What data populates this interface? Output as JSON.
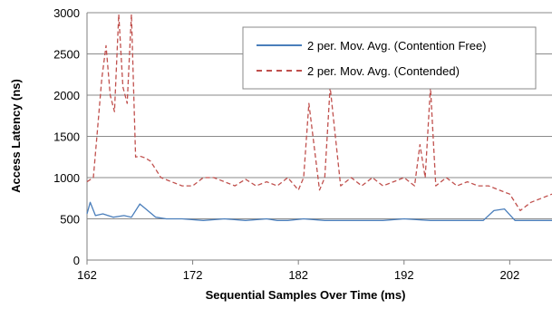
{
  "chart_data": {
    "type": "line",
    "title": "",
    "xlabel": "Sequential Samples Over Time (ms)",
    "ylabel": "Access Latency (ns)",
    "xlim": [
      162,
      206
    ],
    "ylim": [
      0,
      3000
    ],
    "x_ticks": [
      162,
      172,
      182,
      192,
      202
    ],
    "y_ticks": [
      0,
      500,
      1000,
      1500,
      2000,
      2500,
      3000
    ],
    "grid": "horizontal",
    "legend_position": "top-right",
    "series": [
      {
        "name": "2 per. Mov. Avg. (Contention Free)",
        "color": "#4a7ebb",
        "dash": "solid",
        "x": [
          162,
          162.3,
          162.8,
          163.5,
          164.5,
          165.5,
          166.2,
          167.0,
          168.5,
          169.5,
          171.0,
          173.0,
          175.0,
          177.0,
          179.0,
          180.0,
          181.0,
          182.5,
          184.5,
          186.0,
          188.0,
          190.0,
          192.0,
          194.5,
          196.0,
          198.0,
          199.5,
          200.5,
          201.5,
          202.5,
          204.0,
          206.0
        ],
        "y": [
          560,
          700,
          540,
          560,
          520,
          540,
          520,
          680,
          520,
          500,
          500,
          480,
          500,
          480,
          500,
          480,
          480,
          500,
          480,
          480,
          480,
          480,
          500,
          480,
          480,
          480,
          480,
          600,
          620,
          480,
          480,
          480
        ]
      },
      {
        "name": "2 per. Mov. Avg. (Contended)",
        "color": "#c0504d",
        "dash": "dashed",
        "x": [
          162,
          162.6,
          163.0,
          163.4,
          163.8,
          164.2,
          164.6,
          165.0,
          165.4,
          165.8,
          166.2,
          166.6,
          167.0,
          167.5,
          168.0,
          169.0,
          170.0,
          171.0,
          172.0,
          173.0,
          174.0,
          175.0,
          176.0,
          177.0,
          178.0,
          179.0,
          180.0,
          181.0,
          182.0,
          182.5,
          183.0,
          184.0,
          184.5,
          185.0,
          186.0,
          187.0,
          188.0,
          189.0,
          190.0,
          191.0,
          192.0,
          193.0,
          193.5,
          194.0,
          194.5,
          195.0,
          196.0,
          197.0,
          198.0,
          199.0,
          200.0,
          201.0,
          202.0,
          203.0,
          204.0,
          205.0,
          206.0
        ],
        "y": [
          950,
          1000,
          1600,
          2200,
          2600,
          2000,
          1800,
          2980,
          2100,
          1900,
          2980,
          1250,
          1260,
          1240,
          1200,
          1000,
          950,
          900,
          900,
          1000,
          1000,
          950,
          900,
          980,
          900,
          950,
          900,
          1000,
          850,
          1000,
          1900,
          850,
          1000,
          2100,
          900,
          1000,
          900,
          1000,
          900,
          950,
          1000,
          900,
          1400,
          1000,
          2100,
          900,
          1000,
          900,
          950,
          900,
          900,
          850,
          800,
          600,
          700,
          750,
          800
        ]
      }
    ]
  }
}
